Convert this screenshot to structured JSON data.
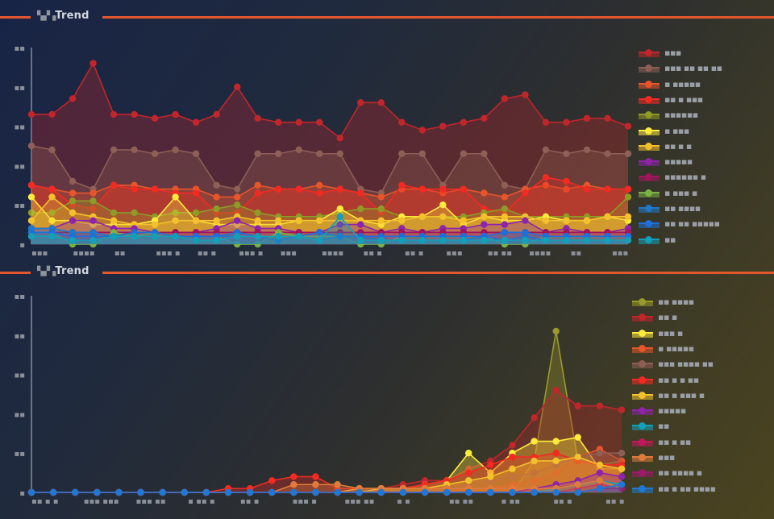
{
  "charts_header": [
    {
      "prefix": "▚▞▗",
      "title": "Trend"
    },
    {
      "prefix": "▚▞▗",
      "title": "Trend"
    }
  ],
  "colors": {
    "accent": "#e4572e",
    "axis": "#b8bcc4"
  },
  "chart_data": [
    {
      "type": "area",
      "title": "▚▞▗ Trend",
      "xlabel": "",
      "ylabel": "",
      "ylim": [
        0,
        50
      ],
      "y_ticks": [
        "▪",
        "▪▪",
        "▪▪",
        "▪▪",
        "▪▪",
        "▪▪"
      ],
      "x_tick_labels": [
        "▪▪▪",
        "▪▪▪▪",
        "▪▪",
        "▪▪▪ ▪",
        "▪▪ ▪",
        "▪▪▪ ▪",
        "▪▪▪",
        "▪▪▪▪",
        "▪▪ ▪",
        "▪▪ ▪",
        "▪▪▪",
        "▪▪ ▪▪",
        "▪▪▪▪",
        "▪▪",
        "▪▪▪"
      ],
      "legend_position": "right",
      "grid": false,
      "x": [
        1,
        2,
        3,
        4,
        5,
        6,
        7,
        8,
        9,
        10,
        11,
        12,
        13,
        14,
        15,
        16,
        17,
        18,
        19,
        20,
        21,
        22,
        23,
        24,
        25,
        26,
        27,
        28,
        29,
        30
      ],
      "series": [
        {
          "name": "▪▪▪",
          "color": "#c0262b",
          "values": [
            33,
            33,
            37,
            46,
            33,
            33,
            32,
            33,
            31,
            33,
            40,
            32,
            31,
            31,
            31,
            27,
            36,
            36,
            31,
            29,
            30,
            31,
            32,
            37,
            38,
            31,
            31,
            32,
            32,
            30
          ]
        },
        {
          "name": "▪▪▪ ▪▪ ▪▪ ▪▪",
          "color": "#8d5f55",
          "values": [
            25,
            24,
            16,
            14,
            24,
            24,
            23,
            24,
            23,
            15,
            14,
            23,
            23,
            24,
            23,
            23,
            14,
            13,
            23,
            23,
            15,
            23,
            23,
            15,
            14,
            24,
            23,
            24,
            23,
            23
          ]
        },
        {
          "name": "▪ ▪▪▪▪▪",
          "color": "#e8552a",
          "values": [
            15,
            14,
            13,
            13,
            15,
            15,
            14,
            14,
            14,
            12,
            12,
            15,
            14,
            14,
            15,
            14,
            13,
            12,
            14,
            14,
            13,
            14,
            13,
            12,
            14,
            15,
            14,
            15,
            14,
            14
          ]
        },
        {
          "name": "▪▪ ▪ ▪▪▪",
          "color": "#f22a22",
          "values": [
            15,
            14,
            10,
            9,
            15,
            14,
            14,
            13,
            13,
            8,
            8,
            13,
            14,
            14,
            13,
            14,
            13,
            8,
            15,
            14,
            14,
            14,
            9,
            8,
            13,
            17,
            16,
            14,
            14,
            14
          ]
        },
        {
          "name": "▪▪▪▪▪▪",
          "color": "#8f9a27",
          "values": [
            8,
            8,
            11,
            11,
            8,
            8,
            7,
            8,
            8,
            9,
            10,
            8,
            7,
            7,
            7,
            8,
            9,
            9,
            7,
            7,
            7,
            7,
            8,
            9,
            7,
            7,
            7,
            7,
            7,
            12
          ]
        },
        {
          "name": "▪ ▪▪▪",
          "color": "#ffeb3b",
          "values": [
            12,
            6,
            6,
            5,
            5,
            5,
            6,
            12,
            6,
            5,
            5,
            5,
            5,
            6,
            6,
            9,
            6,
            5,
            7,
            7,
            10,
            5,
            7,
            6,
            6,
            7,
            6,
            6,
            7,
            6
          ]
        },
        {
          "name": "▪▪ ▪ ▪",
          "color": "#f3c12b",
          "values": [
            6,
            12,
            8,
            7,
            6,
            5,
            5,
            6,
            6,
            6,
            7,
            6,
            6,
            6,
            6,
            6,
            6,
            6,
            6,
            7,
            7,
            6,
            7,
            7,
            7,
            6,
            6,
            6,
            7,
            7
          ]
        },
        {
          "name": "▪▪▪▪▪",
          "color": "#8e24aa",
          "values": [
            4,
            4,
            6,
            6,
            4,
            4,
            3,
            3,
            3,
            4,
            6,
            4,
            4,
            3,
            3,
            5,
            5,
            3,
            4,
            3,
            4,
            4,
            5,
            5,
            6,
            3,
            4,
            3,
            3,
            4
          ]
        },
        {
          "name": "▪▪▪▪▪▪ ▪",
          "color": "#a0155c",
          "values": [
            3,
            3,
            3,
            3,
            3,
            3,
            3,
            3,
            3,
            3,
            3,
            3,
            3,
            3,
            3,
            3,
            3,
            3,
            3,
            3,
            3,
            3,
            3,
            3,
            3,
            3,
            3,
            3,
            3,
            3
          ]
        },
        {
          "name": "▪ ▪▪▪ ▪",
          "color": "#7cb342",
          "values": [
            3,
            3,
            0,
            0,
            3,
            2,
            3,
            2,
            2,
            2,
            0,
            0,
            3,
            2,
            2,
            2,
            0,
            0,
            2,
            2,
            2,
            2,
            2,
            0,
            0,
            2,
            2,
            2,
            2,
            2
          ]
        },
        {
          "name": "▪▪ ▪▪▪▪",
          "color": "#1f78c8",
          "values": [
            4,
            4,
            3,
            3,
            2,
            2,
            2,
            2,
            2,
            2,
            2,
            2,
            1,
            2,
            1,
            2,
            2,
            1,
            1,
            1,
            1,
            1,
            2,
            1,
            2,
            1,
            1,
            1,
            1,
            1
          ]
        },
        {
          "name": "▪▪ ▪▪ ▪▪▪▪▪",
          "color": "#1e6fd9",
          "values": [
            3,
            3,
            2,
            2,
            2,
            3,
            3,
            2,
            2,
            2,
            3,
            2,
            2,
            2,
            3,
            2,
            2,
            2,
            2,
            2,
            2,
            2,
            2,
            3,
            3,
            2,
            2,
            2,
            2,
            2
          ]
        },
        {
          "name": "▪▪",
          "color": "#12a0b8",
          "values": [
            2,
            2,
            1,
            1,
            2,
            2,
            2,
            2,
            1,
            1,
            2,
            2,
            2,
            2,
            1,
            7,
            1,
            1,
            1,
            1,
            1,
            1,
            1,
            1,
            1,
            1,
            1,
            1,
            1,
            1
          ]
        }
      ]
    },
    {
      "type": "area",
      "title": "▚▞▗ Trend",
      "xlabel": "",
      "ylabel": "",
      "ylim": [
        0,
        50
      ],
      "y_ticks": [
        "▪",
        "▪▪",
        "▪▪",
        "▪▪",
        "▪▪",
        "▪▪"
      ],
      "x_tick_labels": [
        "▪▪ ▪ ▪",
        "▪▪▪ ▪▪▪",
        "▪▪▪ ▪▪",
        "▪ ▪▪ ▪",
        "▪▪ ▪",
        "▪▪▪ ▪",
        "▪▪▪ ▪▪",
        "▪ ▪",
        "▪▪ ▪▪",
        "▪ ▪▪",
        "▪▪ ▪",
        "▪▪ ▪"
      ],
      "legend_position": "right",
      "grid": false,
      "x": [
        1,
        2,
        3,
        4,
        5,
        6,
        7,
        8,
        9,
        10,
        11,
        12,
        13,
        14,
        15,
        16,
        17,
        18,
        19,
        20,
        21,
        22,
        23,
        24,
        25,
        26,
        27,
        28
      ],
      "series": [
        {
          "name": "▪▪ ▪▪▪▪",
          "color": "#9a9a2a",
          "values": [
            0,
            0,
            0,
            0,
            0,
            0,
            0,
            0,
            0,
            0,
            0,
            0,
            0,
            0,
            0,
            0,
            0,
            0,
            0,
            0,
            0,
            0,
            0,
            8,
            41,
            8,
            7,
            8
          ]
        },
        {
          "name": "▪▪ ▪",
          "color": "#c0262b",
          "values": [
            0,
            0,
            0,
            0,
            0,
            0,
            0,
            0,
            0,
            0,
            0,
            0,
            0,
            0,
            0,
            0,
            1,
            2,
            3,
            3,
            6,
            8,
            12,
            19,
            26,
            22,
            22,
            21
          ]
        },
        {
          "name": "▪▪▪ ▪",
          "color": "#ffeb3b",
          "values": [
            0,
            0,
            0,
            0,
            0,
            0,
            0,
            0,
            0,
            0,
            0,
            0,
            0,
            0,
            0,
            1,
            1,
            1,
            2,
            3,
            10,
            5,
            10,
            13,
            13,
            14,
            6,
            6
          ]
        },
        {
          "name": "▪ ▪▪▪▪▪",
          "color": "#e8552a",
          "values": [
            0,
            0,
            0,
            0,
            0,
            0,
            0,
            0,
            0,
            0,
            0,
            0,
            0,
            0,
            0,
            0,
            0,
            0,
            0,
            0,
            1,
            1,
            2,
            3,
            5,
            9,
            11,
            8
          ]
        },
        {
          "name": "▪▪▪ ▪▪▪▪ ▪▪",
          "color": "#8d5f55",
          "values": [
            0,
            0,
            0,
            0,
            0,
            0,
            0,
            0,
            0,
            0,
            0,
            0,
            0,
            0,
            0,
            0,
            0,
            0,
            0,
            1,
            2,
            3,
            4,
            5,
            7,
            9,
            10,
            10
          ]
        },
        {
          "name": "▪▪ ▪ ▪ ▪▪",
          "color": "#f22a22",
          "values": [
            0,
            0,
            0,
            0,
            0,
            0,
            0,
            0,
            0,
            1,
            1,
            3,
            4,
            4,
            1,
            1,
            1,
            1,
            2,
            3,
            5,
            7,
            9,
            9,
            10,
            8,
            7,
            7
          ]
        },
        {
          "name": "▪▪ ▪ ▪▪▪ ▪",
          "color": "#f3c12b",
          "values": [
            0,
            0,
            0,
            0,
            0,
            0,
            0,
            0,
            0,
            0,
            0,
            0,
            0,
            0,
            0,
            0,
            1,
            1,
            1,
            2,
            3,
            4,
            6,
            8,
            8,
            9,
            7,
            6
          ]
        },
        {
          "name": "▪▪▪▪▪",
          "color": "#8e24aa",
          "values": [
            0,
            0,
            0,
            0,
            0,
            0,
            0,
            0,
            0,
            0,
            0,
            0,
            0,
            0,
            0,
            0,
            0,
            0,
            0,
            0,
            0,
            0,
            0,
            1,
            2,
            3,
            5,
            4
          ]
        },
        {
          "name": "▪▪",
          "color": "#12a0b8",
          "values": [
            0,
            0,
            0,
            0,
            0,
            0,
            0,
            0,
            0,
            0,
            0,
            0,
            0,
            0,
            0,
            0,
            0,
            0,
            0,
            0,
            0,
            0,
            0,
            0,
            1,
            2,
            3,
            2
          ]
        },
        {
          "name": "▪▪ ▪ ▪▪",
          "color": "#c2185b",
          "values": [
            0,
            0,
            0,
            0,
            0,
            0,
            0,
            0,
            0,
            0,
            0,
            0,
            0,
            0,
            0,
            0,
            0,
            0,
            0,
            0,
            0,
            0,
            0,
            0,
            0,
            1,
            2,
            1
          ]
        },
        {
          "name": "▪▪▪",
          "color": "#e07b3c",
          "values": [
            0,
            0,
            0,
            0,
            0,
            0,
            0,
            0,
            0,
            0,
            0,
            0,
            2,
            2,
            2,
            1,
            1,
            1,
            1,
            1,
            1,
            1,
            1,
            1,
            1,
            2,
            3,
            1
          ]
        },
        {
          "name": "▪▪ ▪▪▪▪ ▪",
          "color": "#9c1a6a",
          "values": [
            0,
            0,
            0,
            0,
            0,
            0,
            0,
            0,
            0,
            0,
            0,
            0,
            0,
            0,
            0,
            0,
            0,
            0,
            0,
            0,
            0,
            0,
            0,
            0,
            0,
            0,
            1,
            1
          ]
        },
        {
          "name": "▪▪ ▪ ▪▪ ▪▪▪▪",
          "color": "#1f78d4",
          "values": [
            0,
            0,
            0,
            0,
            0,
            0,
            0,
            0,
            0,
            0,
            0,
            0,
            0,
            0,
            0,
            0,
            0,
            0,
            0,
            0,
            0,
            0,
            0,
            0,
            0,
            0,
            1,
            2
          ]
        }
      ]
    }
  ]
}
